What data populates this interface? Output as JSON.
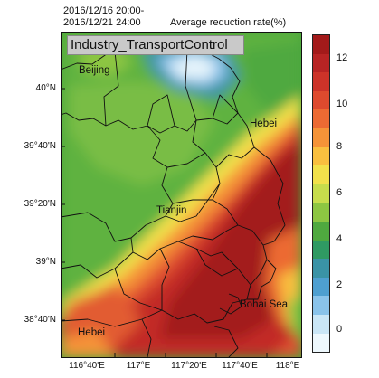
{
  "header": {
    "period_line1": "2016/12/16 20:00-",
    "period_line2": "2016/12/21 24:00",
    "variable": "Average reduction rate(%)"
  },
  "scenario_label": "Industry_TransportControl",
  "places": {
    "beijing": "Beijing",
    "hebei_east": "Hebei",
    "tianjin": "Tianjin",
    "bohai_sea": "Bohai Sea",
    "hebei_south": "Hebei"
  },
  "axes": {
    "lat_ticks": [
      "40°N",
      "39°40'N",
      "39°20'N",
      "39°N",
      "38°40'N"
    ],
    "lon_ticks": [
      "116°40'E",
      "117°E",
      "117°20'E",
      "117°40'E",
      "118°E"
    ]
  },
  "colorbar": {
    "ticks": [
      "12",
      "10",
      "8",
      "6",
      "4",
      "2",
      "0"
    ],
    "colors": [
      "#a31a1a",
      "#b82424",
      "#cc3329",
      "#de4a2e",
      "#ec6a33",
      "#f59338",
      "#f9bf3f",
      "#f2e14b",
      "#c7dd4c",
      "#8dc642",
      "#4fa93f",
      "#2f9a63",
      "#3a93a6",
      "#4e9fd0",
      "#8ac3ea",
      "#cae6f6",
      "#eef8fd"
    ]
  }
}
